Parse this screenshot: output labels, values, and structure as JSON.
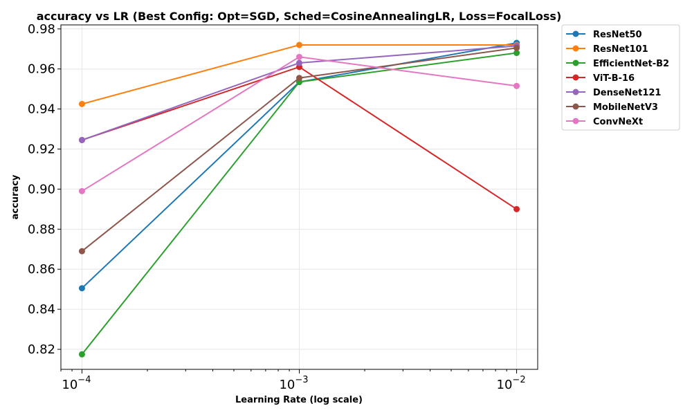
{
  "chart_data": {
    "type": "line",
    "title": "accuracy vs LR (Best Config: Opt=SGD, Sched=CosineAnnealingLR, Loss=FocalLoss)",
    "xlabel": "Learning Rate (log scale)",
    "ylabel": "accuracy",
    "x_scale": "log",
    "x": [
      0.0001,
      0.001,
      0.01
    ],
    "x_ticks": [
      {
        "value": 0.0001,
        "base": "10",
        "exp": "−4"
      },
      {
        "value": 0.001,
        "base": "10",
        "exp": "−3"
      },
      {
        "value": 0.01,
        "base": "10",
        "exp": "−2"
      }
    ],
    "y_ticks": [
      "0.82",
      "0.84",
      "0.86",
      "0.88",
      "0.90",
      "0.92",
      "0.94",
      "0.96",
      "0.98"
    ],
    "xlim": [
      8e-05,
      0.0125
    ],
    "ylim": [
      0.81,
      0.982
    ],
    "grid": true,
    "legend_position": "outside-top-right",
    "series": [
      {
        "name": "ResNet50",
        "color": "#1f77b4",
        "values": [
          0.8505,
          0.9535,
          0.973
        ]
      },
      {
        "name": "ResNet101",
        "color": "#ff7f0e",
        "values": [
          0.9425,
          0.972,
          0.972
        ]
      },
      {
        "name": "EfficientNet-B2",
        "color": "#2ca02c",
        "values": [
          0.8175,
          0.9535,
          0.968
        ]
      },
      {
        "name": "ViT-B-16",
        "color": "#d62728",
        "values": [
          0.9245,
          0.961,
          0.89
        ]
      },
      {
        "name": "DenseNet121",
        "color": "#9467bd",
        "values": [
          0.9245,
          0.963,
          0.9715
        ]
      },
      {
        "name": "MobileNetV3",
        "color": "#8c564b",
        "values": [
          0.869,
          0.9555,
          0.9705
        ]
      },
      {
        "name": "ConvNeXt",
        "color": "#e377c2",
        "values": [
          0.899,
          0.966,
          0.9515
        ]
      }
    ]
  }
}
